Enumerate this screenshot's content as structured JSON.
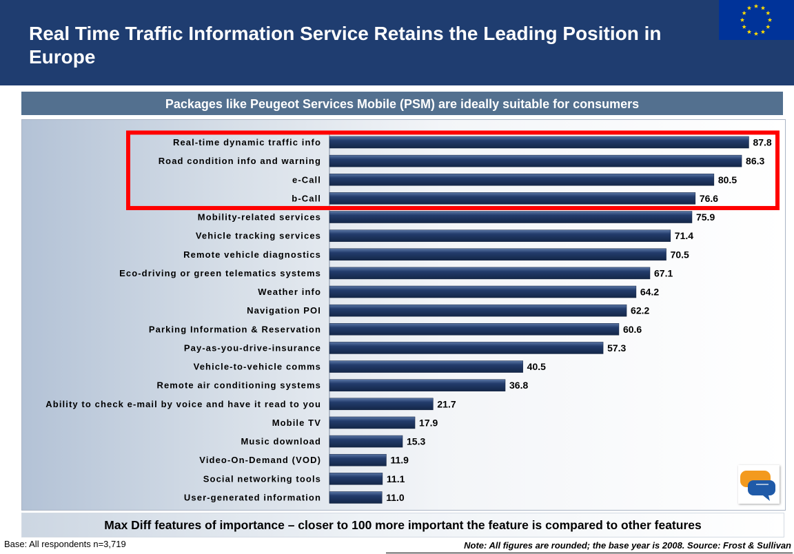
{
  "title": "Real Time Traffic Information Service Retains the Leading Position in Europe",
  "subtitle": "Packages like Peugeot Services Mobile (PSM) are ideally suitable for consumers",
  "footer_caption": "Max Diff features of importance – closer to 100 more important the feature is compared to other features",
  "base_note": "Base: All respondents n=3,719",
  "source_note": "Note: All figures are rounded; the base year is 2008. Source: Frost & Sullivan",
  "colors": {
    "header_bg": "#1f3d70",
    "subtitle_bg": "#53708f",
    "bar": "#233c6c",
    "highlight_border": "#ff0000",
    "flag_bg": "#003399",
    "flag_stars": "#ffdd00"
  },
  "icons": {
    "flag": "eu-flag-icon",
    "logo": "speech-bubbles-logo-icon"
  },
  "chart_data": {
    "type": "bar",
    "orientation": "horizontal",
    "title": "",
    "xlabel": "",
    "ylabel": "",
    "xlim": [
      0,
      100
    ],
    "grid": false,
    "legend": "none",
    "categories": [
      "Real-time dynamic traffic info",
      "Road condition info and warning",
      "e-Call",
      "b-Call",
      "Mobility-related services",
      "Vehicle tracking services",
      "Remote vehicle diagnostics",
      "Eco-driving or green telematics systems",
      "Weather info",
      "Navigation POI",
      "Parking Information & Reservation",
      "Pay-as-you-drive-insurance",
      "Vehicle-to-vehicle comms",
      "Remote air conditioning systems",
      "Ability to check e-mail by voice and have it read to you",
      "Mobile TV",
      "Music download",
      "Video-On-Demand (VOD)",
      "Social networking tools",
      "User-generated information"
    ],
    "values": [
      87.8,
      86.3,
      80.5,
      76.6,
      75.9,
      71.4,
      70.5,
      67.1,
      64.2,
      62.2,
      60.6,
      57.3,
      40.5,
      36.8,
      21.7,
      17.9,
      15.3,
      11.9,
      11.1,
      11.0
    ],
    "value_labels": [
      "87.8",
      "86.3",
      "80.5",
      "76.6",
      "75.9",
      "71.4",
      "70.5",
      "67.1",
      "64.2",
      "62.2",
      "60.6",
      "57.3",
      "40.5",
      "36.8",
      "21.7",
      "17.9",
      "15.3",
      "11.9",
      "11.1",
      "11.0"
    ],
    "highlighted_count": 4
  }
}
